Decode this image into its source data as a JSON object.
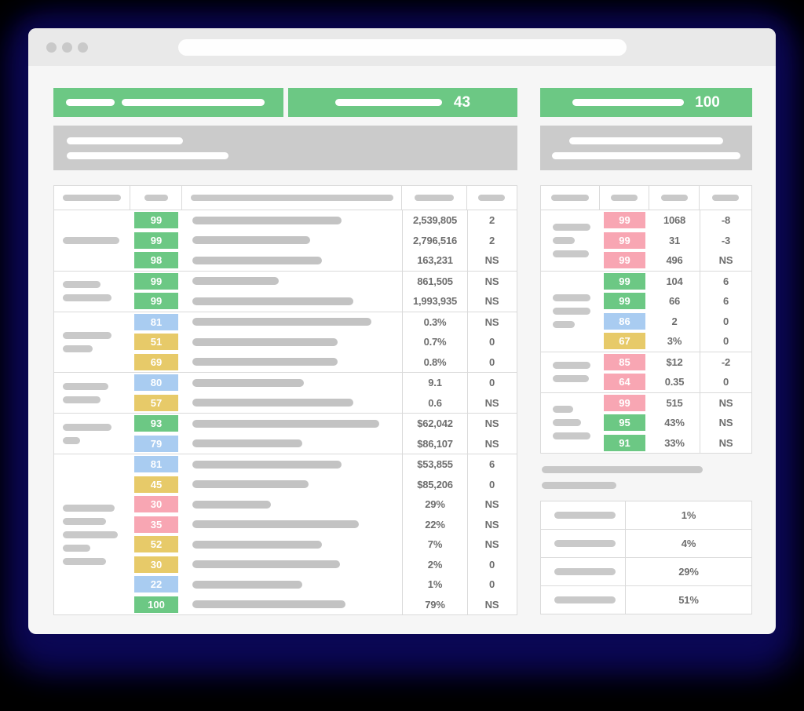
{
  "colors": {
    "green": "#6cc884",
    "blue": "#a9ccf1",
    "yellow": "#e7ca69",
    "pink": "#f8a6b3"
  },
  "browser": {
    "window_dots": [
      "close-dot",
      "minimize-dot",
      "maximize-dot"
    ]
  },
  "header_cards": {
    "card_left": {
      "pill_widths": [
        62,
        182
      ]
    },
    "card_middle": {
      "score": "43",
      "pill_width": 136
    },
    "card_right": {
      "score": "100",
      "pill_width": 142
    }
  },
  "gray_blocks": {
    "left": {
      "pill_widths": [
        148,
        206
      ]
    },
    "right": {
      "pill_widths": [
        196,
        240
      ]
    }
  },
  "left_table": {
    "header_pills": [
      74,
      30,
      258,
      50,
      34
    ],
    "groups": [
      {
        "label_pills": [
          72
        ],
        "rows": [
          {
            "score": "99",
            "color": "green",
            "desc": 190,
            "value": "2,539,805",
            "change": "2"
          },
          {
            "score": "99",
            "color": "green",
            "desc": 150,
            "value": "2,796,516",
            "change": "2"
          },
          {
            "score": "98",
            "color": "green",
            "desc": 165,
            "value": "163,231",
            "change": "NS"
          }
        ]
      },
      {
        "label_pills": [
          48,
          62
        ],
        "rows": [
          {
            "score": "99",
            "color": "green",
            "desc": 110,
            "value": "861,505",
            "change": "NS"
          },
          {
            "score": "99",
            "color": "green",
            "desc": 205,
            "value": "1,993,935",
            "change": "NS"
          }
        ]
      },
      {
        "label_pills": [
          62,
          38
        ],
        "rows": [
          {
            "score": "81",
            "color": "blue",
            "desc": 228,
            "value": "0.3%",
            "change": "NS"
          },
          {
            "score": "51",
            "color": "yellow",
            "desc": 185,
            "value": "0.7%",
            "change": "0"
          },
          {
            "score": "69",
            "color": "yellow",
            "desc": 185,
            "value": "0.8%",
            "change": "0"
          }
        ]
      },
      {
        "label_pills": [
          58,
          48
        ],
        "rows": [
          {
            "score": "80",
            "color": "blue",
            "desc": 142,
            "value": "9.1",
            "change": "0"
          },
          {
            "score": "57",
            "color": "yellow",
            "desc": 205,
            "value": "0.6",
            "change": "NS"
          }
        ]
      },
      {
        "label_pills": [
          62,
          22
        ],
        "rows": [
          {
            "score": "93",
            "color": "green",
            "desc": 238,
            "value": "$62,042",
            "change": "NS"
          },
          {
            "score": "79",
            "color": "blue",
            "desc": 140,
            "value": "$86,107",
            "change": "NS"
          }
        ]
      },
      {
        "label_pills": [
          66,
          55,
          70,
          35,
          55
        ],
        "rows": [
          {
            "score": "81",
            "color": "blue",
            "desc": 190,
            "value": "$53,855",
            "change": "6"
          },
          {
            "score": "45",
            "color": "yellow",
            "desc": 148,
            "value": "$85,206",
            "change": "0"
          },
          {
            "score": "30",
            "color": "pink",
            "desc": 100,
            "value": "29%",
            "change": "NS"
          },
          {
            "score": "35",
            "color": "pink",
            "desc": 212,
            "value": "22%",
            "change": "NS"
          },
          {
            "score": "52",
            "color": "yellow",
            "desc": 165,
            "value": "7%",
            "change": "NS"
          },
          {
            "score": "30",
            "color": "yellow",
            "desc": 188,
            "value": "2%",
            "change": "0"
          },
          {
            "score": "22",
            "color": "blue",
            "desc": 140,
            "value": "1%",
            "change": "0"
          },
          {
            "score": "100",
            "color": "green",
            "desc": 195,
            "value": "79%",
            "change": "NS"
          }
        ]
      }
    ]
  },
  "right_table": {
    "header_pills": [
      48,
      34,
      34,
      34
    ],
    "groups": [
      {
        "label_pills": [
          48,
          28,
          46
        ],
        "rows": [
          {
            "score": "99",
            "color": "pink",
            "value": "1068",
            "change": "-8"
          },
          {
            "score": "99",
            "color": "pink",
            "value": "31",
            "change": "-3"
          },
          {
            "score": "99",
            "color": "pink",
            "value": "496",
            "change": "NS"
          }
        ]
      },
      {
        "label_pills": [
          48,
          48,
          28
        ],
        "rows": [
          {
            "score": "99",
            "color": "green",
            "value": "104",
            "change": "6"
          },
          {
            "score": "99",
            "color": "green",
            "value": "66",
            "change": "6"
          },
          {
            "score": "86",
            "color": "blue",
            "value": "2",
            "change": "0"
          },
          {
            "score": "67",
            "color": "yellow",
            "value": "3%",
            "change": "0"
          }
        ]
      },
      {
        "label_pills": [
          48,
          46
        ],
        "rows": [
          {
            "score": "85",
            "color": "pink",
            "value": "$12",
            "change": "-2"
          },
          {
            "score": "64",
            "color": "pink",
            "value": "0.35",
            "change": "0"
          }
        ]
      },
      {
        "label_pills": [
          26,
          36,
          48
        ],
        "rows": [
          {
            "score": "99",
            "color": "pink",
            "value": "515",
            "change": "NS"
          },
          {
            "score": "95",
            "color": "green",
            "value": "43%",
            "change": "NS"
          },
          {
            "score": "91",
            "color": "green",
            "value": "33%",
            "change": "NS"
          }
        ]
      }
    ]
  },
  "bottom_section": {
    "heading_pills": [
      205,
      95
    ],
    "rows": [
      {
        "label_pill": 78,
        "value": "1%"
      },
      {
        "label_pill": 78,
        "value": "4%"
      },
      {
        "label_pill": 78,
        "value": "29%"
      },
      {
        "label_pill": 78,
        "value": "51%"
      }
    ]
  }
}
